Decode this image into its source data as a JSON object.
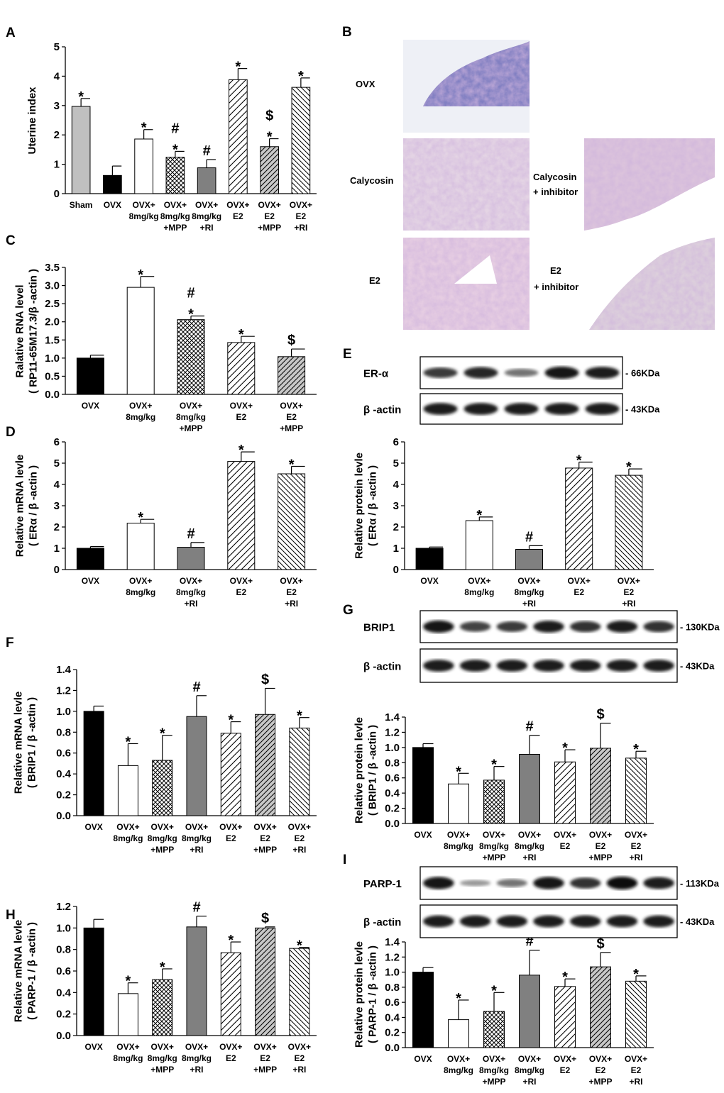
{
  "panels": {
    "A": {
      "letter": "A",
      "ylabel": [
        "Uterine index"
      ],
      "ylim": [
        0,
        5
      ],
      "step": 1,
      "decimals": 0,
      "categories": [
        [
          "Sham"
        ],
        [
          "OVX"
        ],
        [
          "OVX+",
          "8mg/kg"
        ],
        [
          "OVX+",
          "8mg/kg",
          "+MPP"
        ],
        [
          "OVX+",
          "8mg/kg",
          "+RI"
        ],
        [
          "OVX+",
          "E2"
        ],
        [
          "OVX+",
          "E2",
          "+MPP"
        ],
        [
          "OVX+",
          "E2",
          "+RI"
        ]
      ],
      "values": [
        2.97,
        0.62,
        1.86,
        1.24,
        0.88,
        3.88,
        1.6,
        3.62
      ],
      "errors": [
        0.27,
        0.32,
        0.32,
        0.2,
        0.28,
        0.38,
        0.27,
        0.32
      ],
      "marks": [
        "*",
        "",
        "*",
        "#\n*",
        "#",
        "*",
        "$\n*",
        "*"
      ],
      "patterns": [
        "lightgray",
        "black",
        "white",
        "cross",
        "gray",
        "diag-wide",
        "diag-gray",
        "diag-back"
      ]
    },
    "C": {
      "letter": "C",
      "ylabel": [
        "Ralative RNA level",
        "( RP11-65M17.3/β -actin )"
      ],
      "ylim": [
        0,
        3.5
      ],
      "step": 0.5,
      "decimals": 1,
      "categories": [
        [
          "OVX"
        ],
        [
          "OVX+",
          "8mg/kg"
        ],
        [
          "OVX+",
          "8mg/kg",
          "+MPP"
        ],
        [
          "OVX+",
          "E2"
        ],
        [
          "OVX+",
          "E2",
          "+MPP"
        ]
      ],
      "values": [
        1.0,
        2.95,
        2.06,
        1.43,
        1.04
      ],
      "errors": [
        0.08,
        0.3,
        0.1,
        0.17,
        0.21
      ],
      "marks": [
        "",
        "*",
        "#\n*",
        "*",
        "$"
      ],
      "patterns": [
        "black",
        "white",
        "cross",
        "diag-wide",
        "diag-gray"
      ]
    },
    "D": {
      "letter": "D",
      "ylabel": [
        "Relative mRNA levle",
        "( ERα / β -actin )"
      ],
      "ylim": [
        0,
        6
      ],
      "step": 1,
      "decimals": 0,
      "categories": [
        [
          "OVX"
        ],
        [
          "OVX+",
          "8mg/kg"
        ],
        [
          "OVX+",
          "8mg/kg",
          "+RI"
        ],
        [
          "OVX+",
          "E2"
        ],
        [
          "OVX+",
          "E2",
          "+RI"
        ]
      ],
      "values": [
        1.0,
        2.18,
        1.05,
        5.08,
        4.5
      ],
      "errors": [
        0.08,
        0.18,
        0.22,
        0.45,
        0.35
      ],
      "marks": [
        "",
        "*",
        "#",
        "*",
        "*"
      ],
      "patterns": [
        "black",
        "white",
        "gray",
        "diag-wide",
        "diag-back"
      ]
    },
    "E_chart": {
      "letter": "",
      "ylabel": [
        "Relative protein levle",
        "( ERα / β -actin )"
      ],
      "ylim": [
        0,
        6
      ],
      "step": 1,
      "decimals": 0,
      "categories": [
        [
          "OVX"
        ],
        [
          "OVX+",
          "8mg/kg"
        ],
        [
          "OVX+",
          "8mg/kg",
          "+RI"
        ],
        [
          "OVX+",
          "E2"
        ],
        [
          "OVX+",
          "E2",
          "+RI"
        ]
      ],
      "values": [
        1.0,
        2.3,
        0.95,
        4.77,
        4.43
      ],
      "errors": [
        0.06,
        0.17,
        0.17,
        0.28,
        0.3
      ],
      "marks": [
        "",
        "*",
        "#",
        "*",
        "*"
      ],
      "patterns": [
        "black",
        "white",
        "gray",
        "diag-wide",
        "diag-back"
      ]
    },
    "F": {
      "letter": "F",
      "ylabel": [
        "Relative mRNA levle",
        "( BRIP1 / β -actin )"
      ],
      "ylim": [
        0,
        1.4
      ],
      "step": 0.2,
      "decimals": 1,
      "categories": [
        [
          "OVX"
        ],
        [
          "OVX+",
          "8mg/kg"
        ],
        [
          "OVX+",
          "8mg/kg",
          "+MPP"
        ],
        [
          "OVX+",
          "8mg/kg",
          "+RI"
        ],
        [
          "OVX+",
          "E2"
        ],
        [
          "OVX+",
          "E2",
          "+MPP"
        ],
        [
          "OVX+",
          "E2",
          "+RI"
        ]
      ],
      "values": [
        1.0,
        0.48,
        0.53,
        0.95,
        0.79,
        0.97,
        0.84
      ],
      "errors": [
        0.05,
        0.21,
        0.24,
        0.2,
        0.11,
        0.25,
        0.1
      ],
      "marks": [
        "",
        "*",
        "*",
        "#",
        "*",
        "$",
        "*"
      ],
      "patterns": [
        "black",
        "white",
        "cross",
        "gray",
        "diag-wide",
        "diag-gray",
        "diag-back"
      ]
    },
    "G_chart": {
      "letter": "",
      "ylabel": [
        "Relative protein levle",
        "( BRIP1 / β -actin )"
      ],
      "ylim": [
        0,
        1.4
      ],
      "step": 0.2,
      "decimals": 1,
      "categories": [
        [
          "OVX"
        ],
        [
          "OVX+",
          "8mg/kg"
        ],
        [
          "OVX+",
          "8mg/kg",
          "+MPP"
        ],
        [
          "OVX+",
          "8mg/kg",
          "+RI"
        ],
        [
          "OVX+",
          "E2"
        ],
        [
          "OVX+",
          "E2",
          "+MPP"
        ],
        [
          "OVX+",
          "E2",
          "+RI"
        ]
      ],
      "values": [
        1.0,
        0.52,
        0.57,
        0.91,
        0.81,
        0.99,
        0.86
      ],
      "errors": [
        0.05,
        0.14,
        0.18,
        0.25,
        0.16,
        0.33,
        0.09
      ],
      "marks": [
        "",
        "*",
        "*",
        "#",
        "*",
        "$",
        "*"
      ],
      "patterns": [
        "black",
        "white",
        "cross",
        "gray",
        "diag-wide",
        "diag-gray",
        "diag-back"
      ]
    },
    "H": {
      "letter": "H",
      "ylabel": [
        "Relative mRNA levle",
        "( PARP-1 / β -actin )"
      ],
      "ylim": [
        0,
        1.2
      ],
      "step": 0.2,
      "decimals": 1,
      "categories": [
        [
          "OVX"
        ],
        [
          "OVX+",
          "8mg/kg"
        ],
        [
          "OVX+",
          "8mg/kg",
          "+MPP"
        ],
        [
          "OVX+",
          "8mg/kg",
          "+RI"
        ],
        [
          "OVX+",
          "E2"
        ],
        [
          "OVX+",
          "E2",
          "+MPP"
        ],
        [
          "OVX+",
          "E2",
          "+RI"
        ]
      ],
      "values": [
        1.0,
        0.39,
        0.52,
        1.01,
        0.77,
        1.0,
        0.81
      ],
      "errors": [
        0.08,
        0.1,
        0.1,
        0.1,
        0.1,
        0.01,
        0.01
      ],
      "marks": [
        "",
        "*",
        "*",
        "#",
        "*",
        "$",
        "*"
      ],
      "patterns": [
        "black",
        "white",
        "cross",
        "gray",
        "diag-wide",
        "diag-gray",
        "diag-back"
      ]
    },
    "I_chart": {
      "letter": "",
      "ylabel": [
        "Relative protein levle",
        "( PARP-1 / β -actin )"
      ],
      "ylim": [
        0,
        1.4
      ],
      "step": 0.2,
      "decimals": 1,
      "categories": [
        [
          "OVX"
        ],
        [
          "OVX+",
          "8mg/kg"
        ],
        [
          "OVX+",
          "8mg/kg",
          "+MPP"
        ],
        [
          "OVX+",
          "8mg/kg",
          "+RI"
        ],
        [
          "OVX+",
          "E2"
        ],
        [
          "OVX+",
          "E2",
          "+MPP"
        ],
        [
          "OVX+",
          "E2",
          "+RI"
        ]
      ],
      "values": [
        1.0,
        0.37,
        0.48,
        0.96,
        0.81,
        1.07,
        0.88
      ],
      "errors": [
        0.06,
        0.26,
        0.25,
        0.33,
        0.1,
        0.19,
        0.07
      ],
      "marks": [
        "",
        "*",
        "*",
        "#",
        "*",
        "$",
        "*"
      ],
      "patterns": [
        "black",
        "white",
        "cross",
        "gray",
        "diag-wide",
        "diag-gray",
        "diag-back"
      ]
    }
  },
  "histology": {
    "letter": "B",
    "labels": {
      "ovx": "OVX",
      "calycosin": "Calycosin",
      "calycosin_inhibitor": [
        "Calycosin",
        "+ inhibitor"
      ],
      "e2": "E2",
      "e2_inhibitor": [
        "E2",
        "+ inhibitor"
      ]
    }
  },
  "blots": {
    "E": {
      "letter": "E",
      "rows": [
        {
          "label": "ER-α",
          "kda": "- 66KDa",
          "intensity": [
            0.75,
            0.85,
            0.45,
            0.95,
            0.9
          ]
        },
        {
          "label": "β -actin",
          "kda": "- 43KDa",
          "intensity": [
            0.9,
            0.9,
            0.9,
            0.9,
            0.9
          ]
        }
      ]
    },
    "G": {
      "letter": "G",
      "rows": [
        {
          "label": "BRIP1",
          "kda": "- 130KDa",
          "intensity": [
            0.95,
            0.7,
            0.75,
            0.9,
            0.8,
            0.9,
            0.8
          ]
        },
        {
          "label": "β -actin",
          "kda": "- 43KDa",
          "intensity": [
            0.9,
            0.9,
            0.9,
            0.9,
            0.9,
            0.9,
            0.9
          ]
        }
      ]
    },
    "I": {
      "letter": "I",
      "rows": [
        {
          "label": "PARP-1",
          "kda": "- 113KDa",
          "intensity": [
            0.95,
            0.25,
            0.45,
            0.95,
            0.8,
            1.0,
            0.9
          ]
        },
        {
          "label": "β -actin",
          "kda": "- 43KDa",
          "intensity": [
            0.9,
            0.9,
            0.9,
            0.9,
            0.9,
            0.9,
            0.9
          ]
        }
      ]
    }
  },
  "chart_data": [
    {
      "panel": "A",
      "type": "bar",
      "ylabel": "Uterine index",
      "ylim": [
        0,
        5
      ],
      "categories": [
        "Sham",
        "OVX",
        "OVX+ 8mg/kg",
        "OVX+ 8mg/kg +MPP",
        "OVX+ 8mg/kg +RI",
        "OVX+ E2",
        "OVX+ E2 +MPP",
        "OVX+ E2 +RI"
      ],
      "values": [
        2.97,
        0.62,
        1.86,
        1.24,
        0.88,
        3.88,
        1.6,
        3.62
      ]
    },
    {
      "panel": "C",
      "type": "bar",
      "ylabel": "Ralative RNA level ( RP11-65M17.3/β -actin )",
      "ylim": [
        0,
        3.5
      ],
      "categories": [
        "OVX",
        "OVX+ 8mg/kg",
        "OVX+ 8mg/kg +MPP",
        "OVX+ E2",
        "OVX+ E2 +MPP"
      ],
      "values": [
        1.0,
        2.95,
        2.06,
        1.43,
        1.04
      ]
    },
    {
      "panel": "D",
      "type": "bar",
      "ylabel": "Relative mRNA levle ( ERα / β -actin )",
      "ylim": [
        0,
        6
      ],
      "categories": [
        "OVX",
        "OVX+ 8mg/kg",
        "OVX+ 8mg/kg +RI",
        "OVX+ E2",
        "OVX+ E2 +RI"
      ],
      "values": [
        1.0,
        2.18,
        1.05,
        5.08,
        4.5
      ]
    },
    {
      "panel": "E",
      "type": "bar",
      "ylabel": "Relative protein levle ( ERα / β -actin )",
      "ylim": [
        0,
        6
      ],
      "categories": [
        "OVX",
        "OVX+ 8mg/kg",
        "OVX+ 8mg/kg +RI",
        "OVX+ E2",
        "OVX+ E2 +RI"
      ],
      "values": [
        1.0,
        2.3,
        0.95,
        4.77,
        4.43
      ]
    },
    {
      "panel": "F",
      "type": "bar",
      "ylabel": "Relative mRNA levle ( BRIP1 / β -actin )",
      "ylim": [
        0,
        1.4
      ],
      "categories": [
        "OVX",
        "OVX+ 8mg/kg",
        "OVX+ 8mg/kg +MPP",
        "OVX+ 8mg/kg +RI",
        "OVX+ E2",
        "OVX+ E2 +MPP",
        "OVX+ E2 +RI"
      ],
      "values": [
        1.0,
        0.48,
        0.53,
        0.95,
        0.79,
        0.97,
        0.84
      ]
    },
    {
      "panel": "G",
      "type": "bar",
      "ylabel": "Relative protein levle ( BRIP1 / β -actin )",
      "ylim": [
        0,
        1.4
      ],
      "categories": [
        "OVX",
        "OVX+ 8mg/kg",
        "OVX+ 8mg/kg +MPP",
        "OVX+ 8mg/kg +RI",
        "OVX+ E2",
        "OVX+ E2 +MPP",
        "OVX+ E2 +RI"
      ],
      "values": [
        1.0,
        0.52,
        0.57,
        0.91,
        0.81,
        0.99,
        0.86
      ]
    },
    {
      "panel": "H",
      "type": "bar",
      "ylabel": "Relative mRNA levle ( PARP-1 / β -actin )",
      "ylim": [
        0,
        1.2
      ],
      "categories": [
        "OVX",
        "OVX+ 8mg/kg",
        "OVX+ 8mg/kg +MPP",
        "OVX+ 8mg/kg +RI",
        "OVX+ E2",
        "OVX+ E2 +MPP",
        "OVX+ E2 +RI"
      ],
      "values": [
        1.0,
        0.39,
        0.52,
        1.01,
        0.77,
        1.0,
        0.81
      ]
    },
    {
      "panel": "I",
      "type": "bar",
      "ylabel": "Relative protein levle ( PARP-1 / β -actin )",
      "ylim": [
        0,
        1.4
      ],
      "categories": [
        "OVX",
        "OVX+ 8mg/kg",
        "OVX+ 8mg/kg +MPP",
        "OVX+ 8mg/kg +RI",
        "OVX+ E2",
        "OVX+ E2 +MPP",
        "OVX+ E2 +RI"
      ],
      "values": [
        1.0,
        0.37,
        0.48,
        0.96,
        0.81,
        1.07,
        0.88
      ]
    }
  ]
}
